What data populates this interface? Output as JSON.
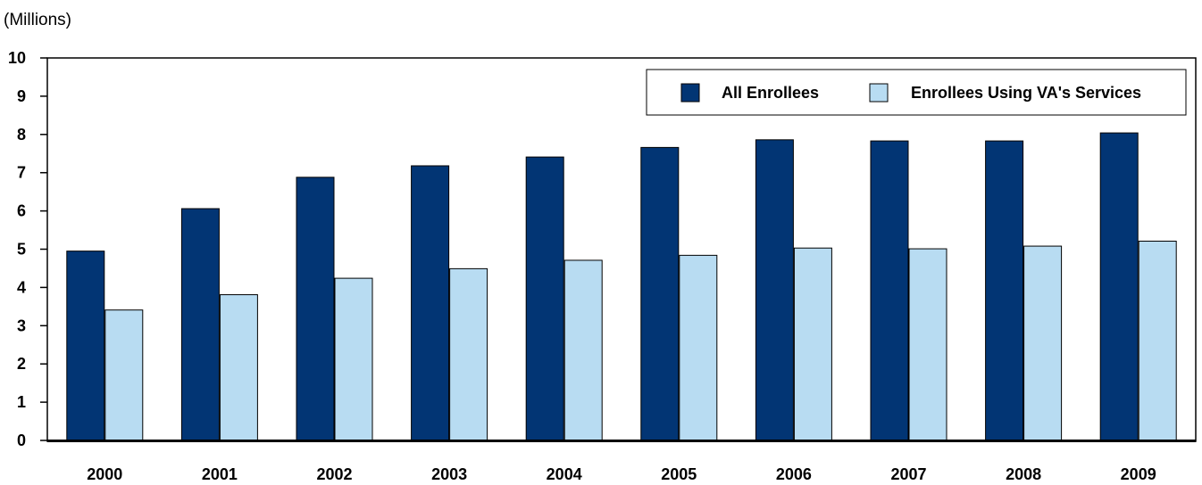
{
  "chart_data": {
    "type": "bar",
    "units_label": "(Millions)",
    "title": "",
    "xlabel": "",
    "ylabel": "",
    "ylim": [
      0,
      10
    ],
    "yticks": [
      "0",
      "1",
      "2",
      "3",
      "4",
      "5",
      "6",
      "7",
      "8",
      "9",
      "10"
    ],
    "categories": [
      "2000",
      "2001",
      "2002",
      "2003",
      "2004",
      "2005",
      "2006",
      "2007",
      "2008",
      "2009"
    ],
    "series": [
      {
        "name": "All Enrollees",
        "color": "#023574",
        "values": [
          4.95,
          6.06,
          6.88,
          7.18,
          7.41,
          7.66,
          7.86,
          7.83,
          7.83,
          8.04
        ]
      },
      {
        "name": "Enrollees Using VA's Services",
        "color": "#b8dcf2",
        "values": [
          3.41,
          3.81,
          4.24,
          4.49,
          4.71,
          4.84,
          5.03,
          5.01,
          5.08,
          5.21
        ]
      }
    ],
    "legend_position": "top-right",
    "grid": false
  }
}
